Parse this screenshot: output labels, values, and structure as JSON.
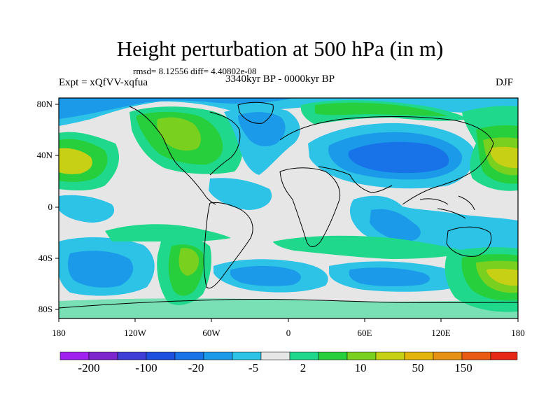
{
  "header": {
    "title": "Height perturbation at 500 hPa (in m)",
    "stats": "rmsd= 8.12556 diff= 4.40802e-08",
    "experiment": "Expt = xQfVV-xqfua",
    "period": "3340kyr BP - 0000kyr BP",
    "season": "DJF"
  },
  "axes": {
    "lat_labels": [
      "80N",
      "40N",
      "0",
      "40S",
      "80S"
    ],
    "lon_labels": [
      "180",
      "120W",
      "60W",
      "0",
      "60E",
      "120E",
      "180"
    ]
  },
  "colorbar": {
    "colors": [
      "#a020f0",
      "#7d26cd",
      "#3f3fd8",
      "#1e50e0",
      "#1873e8",
      "#1a9ae8",
      "#2cc3e6",
      "#e6e6e6",
      "#1fd88c",
      "#27cf3c",
      "#7ad01e",
      "#c8d016",
      "#e3b40c",
      "#e69114",
      "#ea5a14",
      "#e62814"
    ],
    "labels": [
      "-200",
      "-100",
      "-20",
      "-5",
      "2",
      "10",
      "50",
      "150"
    ]
  },
  "palette": {
    "neutral": "#e6e6e6",
    "light_blue": "#2cc3e6",
    "mid_blue": "#1a9ae8",
    "blue": "#1873e8",
    "deep_blue": "#1e50e0",
    "teal_green": "#1fd88c",
    "green": "#27cf3c",
    "yellow_green": "#7ad01e",
    "yellow": "#c8d016",
    "amber": "#e3b40c"
  }
}
